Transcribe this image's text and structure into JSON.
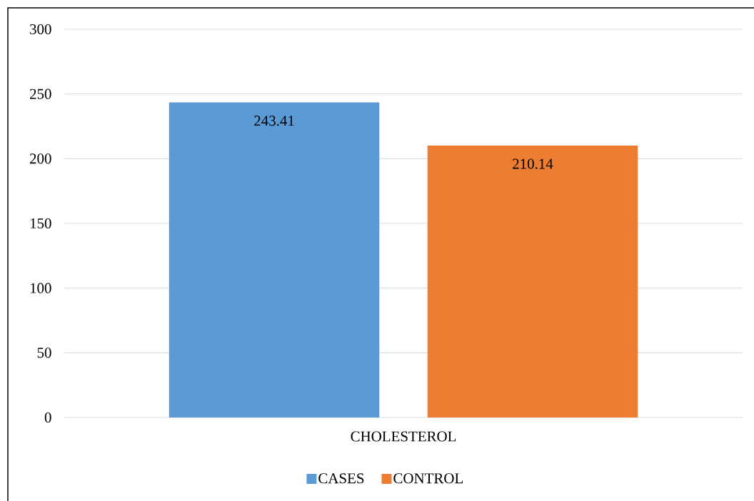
{
  "chart_data": {
    "type": "bar",
    "categories": [
      "CHOLESTEROL"
    ],
    "series": [
      {
        "name": "CASES",
        "color": "#5b9bd5",
        "values": [
          243.41
        ]
      },
      {
        "name": "CONTROL",
        "color": "#ed7d31",
        "values": [
          210.14
        ]
      }
    ],
    "ylim": [
      0,
      300
    ],
    "yticks": [
      0,
      50,
      100,
      150,
      200,
      250,
      300
    ],
    "grid": "y",
    "legend": "bottom",
    "data_labels": true
  }
}
